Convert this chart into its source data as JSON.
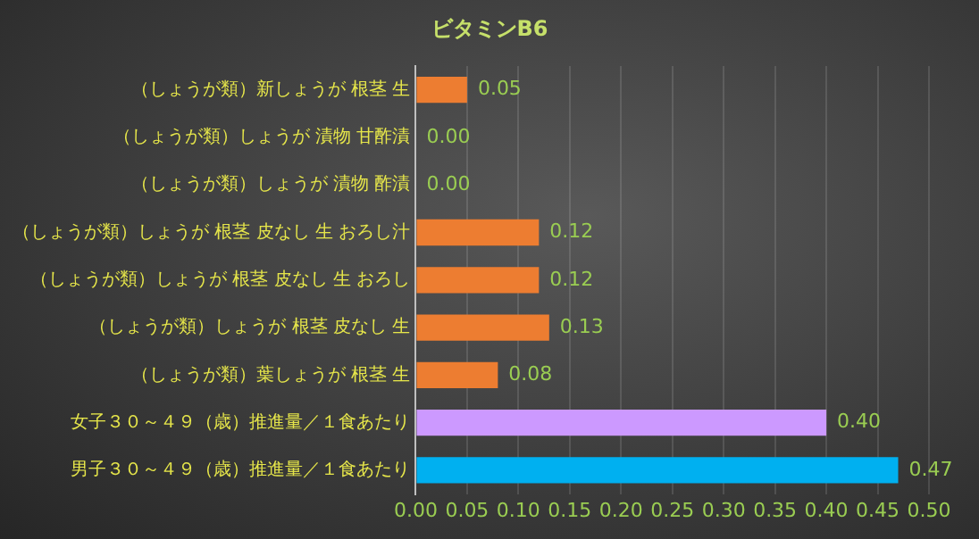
{
  "chart_data": {
    "type": "bar",
    "orientation": "horizontal",
    "title": "ビタミンB6",
    "categories": [
      "（しょうが類）新しょうが 根茎 生",
      "（しょうが類）しょうが 漬物 甘酢漬",
      "（しょうが類）しょうが 漬物 酢漬",
      "（しょうが類）しょうが 根茎 皮なし 生 おろし汁",
      "（しょうが類）しょうが 根茎 皮なし 生 おろし",
      "（しょうが類）しょうが 根茎 皮なし 生",
      "（しょうが類）葉しょうが 根茎 生",
      "女子３０～４９（歳）推進量／１食あたり",
      "男子３０～４９（歳）推進量／１食あたり"
    ],
    "values": [
      0.05,
      0,
      0,
      0.12,
      0.12,
      0.13,
      0.08,
      0.4,
      0.47
    ],
    "value_labels": [
      "0.05",
      "0.00",
      "0.00",
      "0.12",
      "0.12",
      "0.13",
      "0.08",
      "0.40",
      "0.47"
    ],
    "colors": [
      "#ed7d31",
      "#ed7d31",
      "#ed7d31",
      "#ed7d31",
      "#ed7d31",
      "#ed7d31",
      "#ed7d31",
      "#cc99ff",
      "#00b0f0"
    ],
    "xlim": [
      0,
      0.5
    ],
    "xticks": [
      {
        "value": 0,
        "label": "0.00"
      },
      {
        "value": 0.05,
        "label": "0.05"
      },
      {
        "value": 0.1,
        "label": "0.10"
      },
      {
        "value": 0.15,
        "label": "0.15"
      },
      {
        "value": 0.2,
        "label": "0.20"
      },
      {
        "value": 0.25,
        "label": "0.25"
      },
      {
        "value": 0.3,
        "label": "0.30"
      },
      {
        "value": 0.35,
        "label": "0.35"
      },
      {
        "value": 0.4,
        "label": "0.40"
      },
      {
        "value": 0.45,
        "label": "0.45"
      },
      {
        "value": 0.5,
        "label": "0.50"
      }
    ],
    "grid": "x",
    "legend": false
  }
}
